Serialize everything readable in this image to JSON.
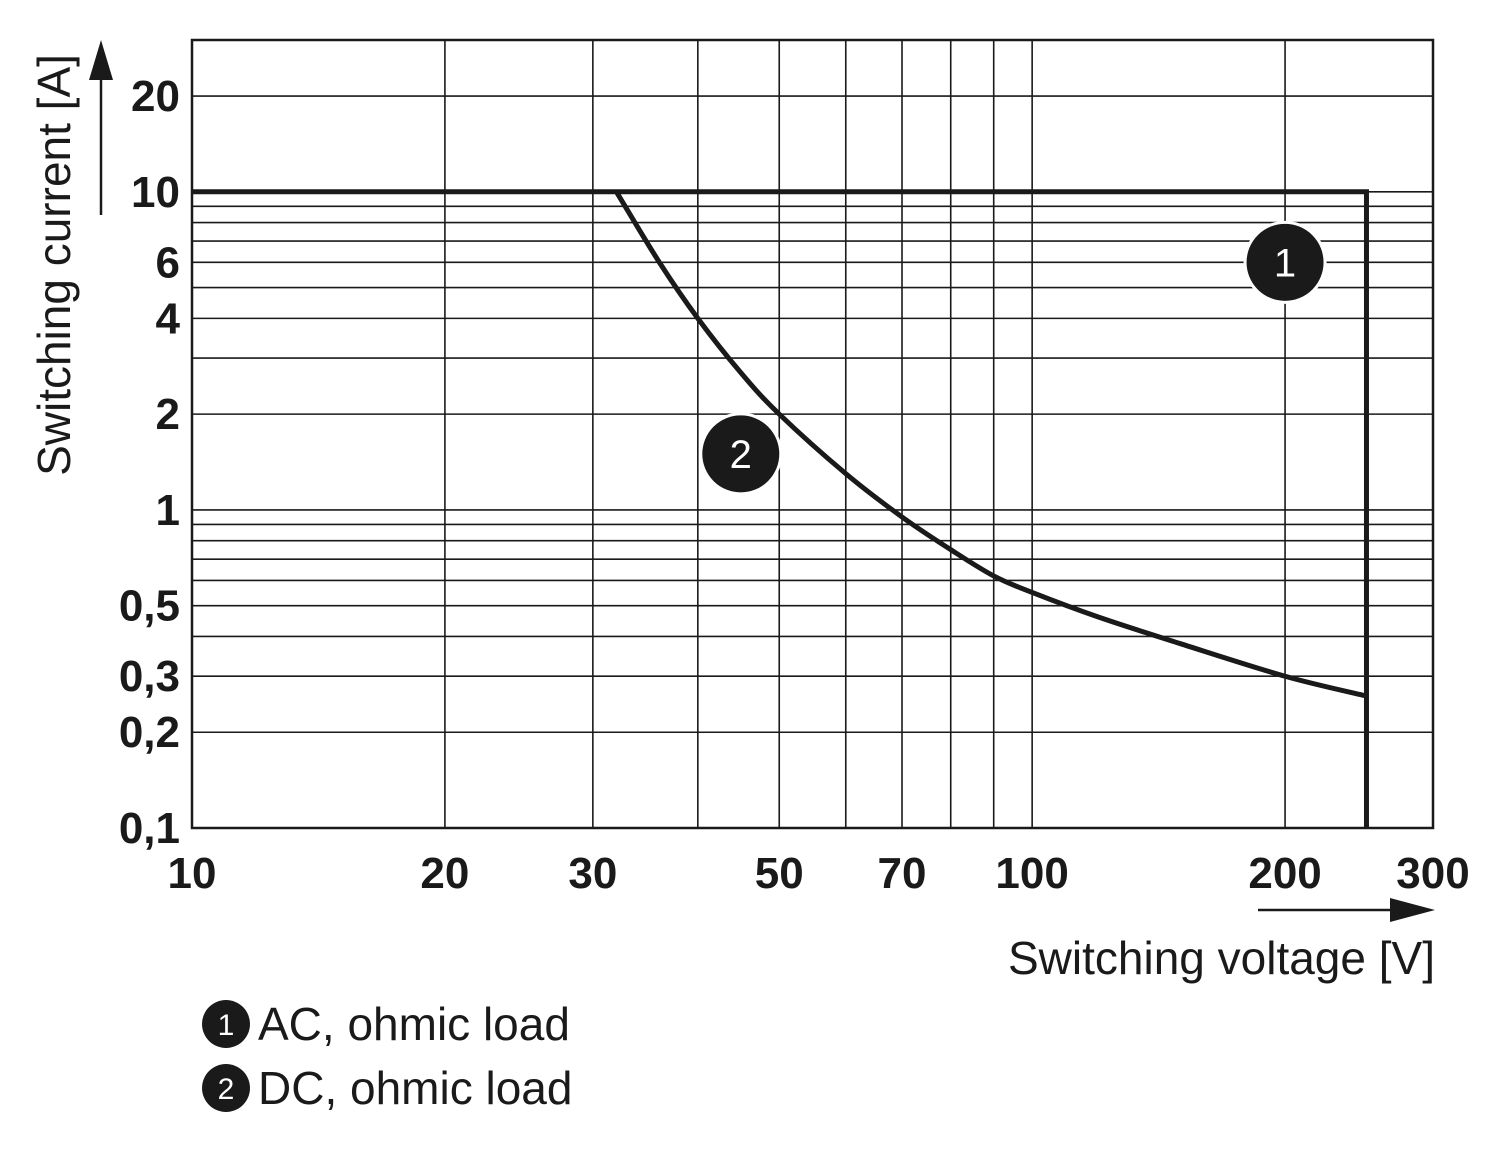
{
  "chart_data": {
    "type": "line",
    "xlabel": "Switching voltage [V]",
    "ylabel": "Switching current [A]",
    "xscale": "log",
    "yscale": "log",
    "xlim": [
      10,
      300
    ],
    "ylim": [
      0.1,
      30
    ],
    "x_ticks": [
      {
        "value": 10,
        "label": "10"
      },
      {
        "value": 20,
        "label": "20"
      },
      {
        "value": 30,
        "label": "30"
      },
      {
        "value": 50,
        "label": "50"
      },
      {
        "value": 70,
        "label": "70"
      },
      {
        "value": 100,
        "label": "100"
      },
      {
        "value": 200,
        "label": "200"
      },
      {
        "value": 300,
        "label": "300"
      }
    ],
    "y_ticks": [
      {
        "value": 0.1,
        "label": "0,1"
      },
      {
        "value": 0.2,
        "label": "0,2"
      },
      {
        "value": 0.3,
        "label": "0,3"
      },
      {
        "value": 0.5,
        "label": "0,5"
      },
      {
        "value": 1,
        "label": "1"
      },
      {
        "value": 2,
        "label": "2"
      },
      {
        "value": 4,
        "label": "4"
      },
      {
        "value": 6,
        "label": "6"
      },
      {
        "value": 10,
        "label": "10"
      },
      {
        "value": 20,
        "label": "20"
      }
    ],
    "x_gridlines": [
      10,
      20,
      30,
      40,
      50,
      60,
      70,
      80,
      90,
      100,
      200,
      300
    ],
    "y_gridlines": [
      0.1,
      0.2,
      0.3,
      0.4,
      0.5,
      0.6,
      0.7,
      0.8,
      0.9,
      1,
      2,
      3,
      4,
      5,
      6,
      7,
      8,
      9,
      10,
      20,
      30
    ],
    "grid": true,
    "series": [
      {
        "marker": "1",
        "label_position": [
          200,
          6
        ],
        "points": [
          [
            10,
            10
          ],
          [
            250,
            10
          ],
          [
            250,
            0.1
          ]
        ]
      },
      {
        "marker": "2",
        "label_position": [
          45,
          1.5
        ],
        "points": [
          [
            32,
            10
          ],
          [
            36,
            6
          ],
          [
            40,
            4
          ],
          [
            45,
            2.7
          ],
          [
            50,
            2.0
          ],
          [
            60,
            1.3
          ],
          [
            70,
            0.95
          ],
          [
            80,
            0.75
          ],
          [
            90,
            0.62
          ],
          [
            100,
            0.55
          ],
          [
            120,
            0.46
          ],
          [
            150,
            0.38
          ],
          [
            200,
            0.3
          ],
          [
            250,
            0.26
          ]
        ]
      }
    ],
    "legend": [
      {
        "marker": "1",
        "text": "AC, ohmic load"
      },
      {
        "marker": "2",
        "text": "DC, ohmic load"
      }
    ],
    "legend_placement": "bottom-left"
  }
}
